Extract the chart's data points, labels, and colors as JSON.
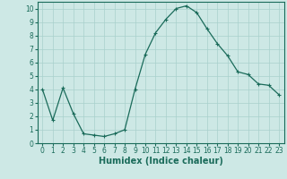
{
  "x": [
    0,
    1,
    2,
    3,
    4,
    5,
    6,
    7,
    8,
    9,
    10,
    11,
    12,
    13,
    14,
    15,
    16,
    17,
    18,
    19,
    20,
    21,
    22,
    23
  ],
  "y": [
    4.0,
    1.7,
    4.1,
    2.2,
    0.7,
    0.6,
    0.5,
    0.7,
    1.0,
    4.0,
    6.6,
    8.2,
    9.2,
    10.0,
    10.2,
    9.7,
    8.5,
    7.4,
    6.5,
    5.3,
    5.1,
    4.4,
    4.3,
    3.6
  ],
  "line_color": "#1a6b5a",
  "marker": "+",
  "marker_size": 3,
  "bg_color": "#cde8e5",
  "grid_color": "#a8d0cc",
  "xlabel": "Humidex (Indice chaleur)",
  "ylim": [
    0,
    10.5
  ],
  "xlim": [
    -0.5,
    23.5
  ],
  "yticks": [
    0,
    1,
    2,
    3,
    4,
    5,
    6,
    7,
    8,
    9,
    10
  ],
  "xticks": [
    0,
    1,
    2,
    3,
    4,
    5,
    6,
    7,
    8,
    9,
    10,
    11,
    12,
    13,
    14,
    15,
    16,
    17,
    18,
    19,
    20,
    21,
    22,
    23
  ],
  "xlabel_color": "#1a6b5a",
  "tick_color": "#1a6b5a",
  "axis_color": "#1a6b5a",
  "tick_fontsize": 5.5,
  "xlabel_fontsize": 7,
  "linewidth": 0.9,
  "markeredgewidth": 0.8
}
